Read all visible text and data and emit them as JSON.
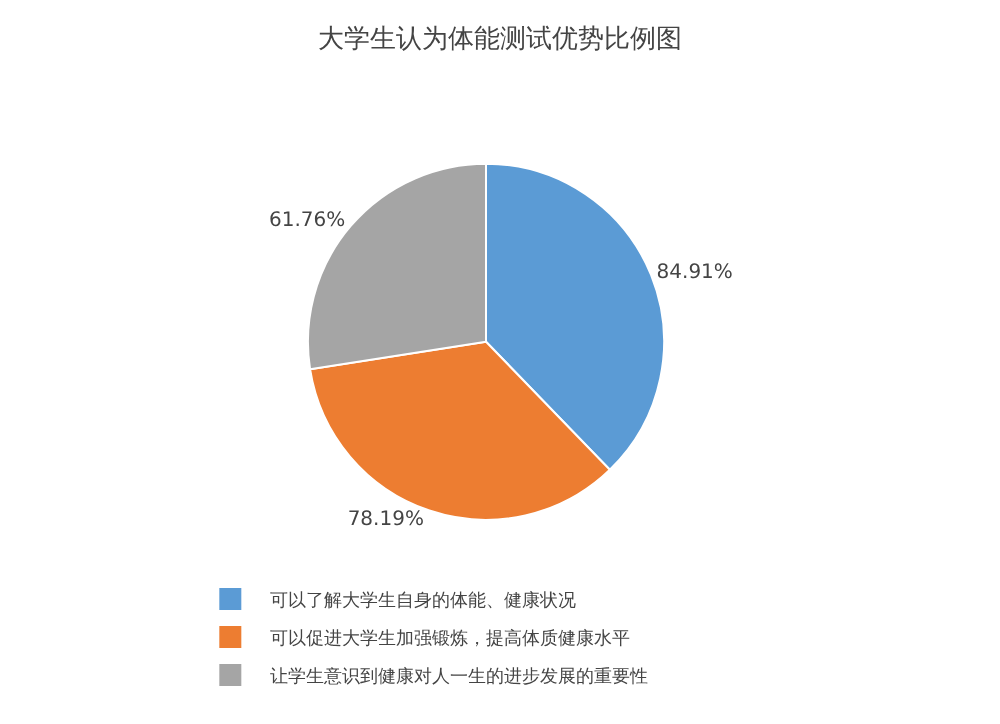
{
  "chart_data": {
    "type": "pie",
    "title": "大学生认为体能测试优势比例图",
    "categories": [
      "可以了解大学生自身的体能、健康状况",
      "可以促进大学生加强锻炼，提高体质健康水平",
      "让学生意识到健康对人一生的进步发展的重要性"
    ],
    "values": [
      84.91,
      78.19,
      61.76
    ],
    "value_labels": [
      "84.91%",
      "78.19%",
      "61.76%"
    ],
    "colors": [
      "#5b9bd5",
      "#ed7d31",
      "#a5a5a5"
    ],
    "legend": "bottom"
  }
}
